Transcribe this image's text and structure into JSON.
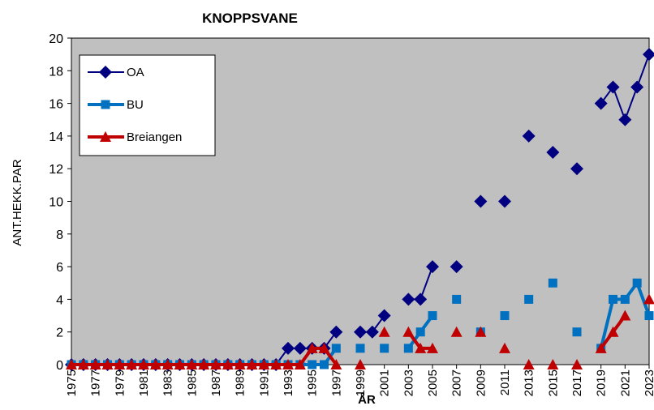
{
  "chart_data": {
    "type": "line",
    "title": "KNOPPSVANE",
    "x_label": "ÅR",
    "y_label": "ANT.HEKK.PAR",
    "x": [
      1975,
      1976,
      1977,
      1978,
      1979,
      1980,
      1981,
      1982,
      1983,
      1984,
      1985,
      1986,
      1987,
      1988,
      1989,
      1990,
      1991,
      1992,
      1993,
      1994,
      1995,
      1996,
      1997,
      1998,
      1999,
      2000,
      2001,
      2002,
      2003,
      2004,
      2005,
      2006,
      2007,
      2008,
      2009,
      2010,
      2011,
      2012,
      2013,
      2014,
      2015,
      2016,
      2017,
      2018,
      2019,
      2020,
      2021,
      2022,
      2023
    ],
    "series": [
      {
        "name": "OA",
        "color": "#000080",
        "marker": "diamond",
        "values": [
          0,
          0,
          0,
          0,
          0,
          0,
          0,
          0,
          0,
          0,
          0,
          0,
          0,
          0,
          0,
          0,
          0,
          0,
          1,
          1,
          1,
          1,
          2,
          null,
          2,
          2,
          3,
          null,
          4,
          4,
          6,
          null,
          6,
          null,
          10,
          null,
          10,
          null,
          14,
          null,
          13,
          null,
          12,
          null,
          16,
          17,
          15,
          17,
          19
        ]
      },
      {
        "name": "BU",
        "color": "#0070c0",
        "marker": "square",
        "values": [
          0,
          0,
          0,
          0,
          0,
          0,
          0,
          0,
          0,
          0,
          0,
          0,
          0,
          0,
          0,
          0,
          0,
          0,
          0,
          0,
          0,
          0,
          1,
          null,
          1,
          null,
          1,
          null,
          1,
          2,
          3,
          null,
          4,
          null,
          2,
          null,
          3,
          null,
          4,
          null,
          5,
          null,
          2,
          null,
          1,
          4,
          4,
          5,
          3
        ]
      },
      {
        "name": "Breiangen",
        "color": "#c00000",
        "marker": "triangle",
        "values": [
          0,
          0,
          0,
          0,
          0,
          0,
          0,
          0,
          0,
          0,
          0,
          0,
          0,
          0,
          0,
          0,
          0,
          0,
          0,
          0,
          1,
          1,
          0,
          null,
          0,
          null,
          2,
          null,
          2,
          1,
          1,
          null,
          2,
          null,
          2,
          null,
          1,
          null,
          0,
          null,
          0,
          null,
          0,
          null,
          1,
          2,
          3,
          null,
          4
        ]
      }
    ],
    "xlim": [
      1975,
      2023
    ],
    "xticks": [
      1975,
      1977,
      1979,
      1981,
      1983,
      1985,
      1987,
      1989,
      1991,
      1993,
      1995,
      1997,
      1999,
      2001,
      2003,
      2005,
      2007,
      2009,
      2011,
      2013,
      2015,
      2017,
      2019,
      2021,
      2023
    ],
    "ylim": [
      0,
      20
    ],
    "yticks": [
      0,
      2,
      4,
      6,
      8,
      10,
      12,
      14,
      16,
      18,
      20
    ],
    "legend": "upper left",
    "plot_background": "#c0c0c0"
  }
}
